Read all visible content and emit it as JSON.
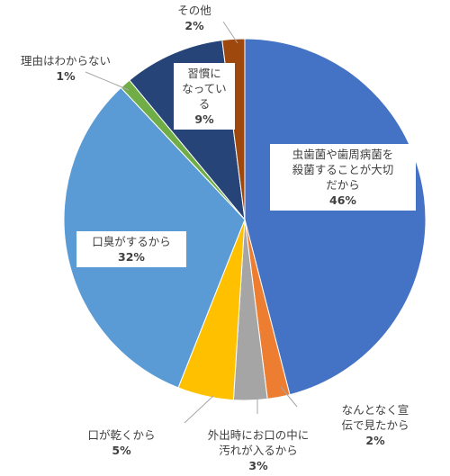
{
  "chart_data": {
    "type": "pie",
    "slices": [
      {
        "label": "虫歯菌や歯周病菌を殺菌することが大切だから",
        "value": 46,
        "pct": "46%",
        "color": "#4472C4"
      },
      {
        "label": "なんとなく宣伝で見たから",
        "value": 2,
        "pct": "2%",
        "color": "#ED7D31"
      },
      {
        "label": "外出時にお口の中に汚れが入るから",
        "value": 3,
        "pct": "3%",
        "color": "#A5A5A5"
      },
      {
        "label": "口が乾くから",
        "value": 5,
        "pct": "5%",
        "color": "#FFC000"
      },
      {
        "label": "口臭がするから",
        "value": 32,
        "pct": "32%",
        "color": "#5B9BD5"
      },
      {
        "label": "理由はわからない",
        "value": 1,
        "pct": "1%",
        "color": "#70AD47"
      },
      {
        "label": "習慣になっている",
        "value": 9,
        "pct": "9%",
        "color": "#264478"
      },
      {
        "label": "その他",
        "value": 2,
        "pct": "2%",
        "color": "#9E480E"
      }
    ]
  },
  "labels": {
    "caries": {
      "line1": "虫歯菌や歯周病菌を",
      "line2": "殺菌することが大切",
      "line3": "だから",
      "pct": "46%"
    },
    "ad": {
      "line1": "なんとなく宣",
      "line2": "伝で見たから",
      "pct": "2%"
    },
    "dirt": {
      "line1": "外出時にお口の中に",
      "line2": "汚れが入るから",
      "pct": "3%"
    },
    "dry": {
      "line1": "口が乾くから",
      "pct": "5%"
    },
    "breath": {
      "line1": "口臭がするから",
      "pct": "32%"
    },
    "unknown": {
      "line1": "理由はわからない",
      "pct": "1%"
    },
    "habit": {
      "line1": "習慣に",
      "line2": "なってい",
      "line3": "る",
      "pct": "9%"
    },
    "other": {
      "line1": "その他",
      "pct": "2%"
    }
  }
}
